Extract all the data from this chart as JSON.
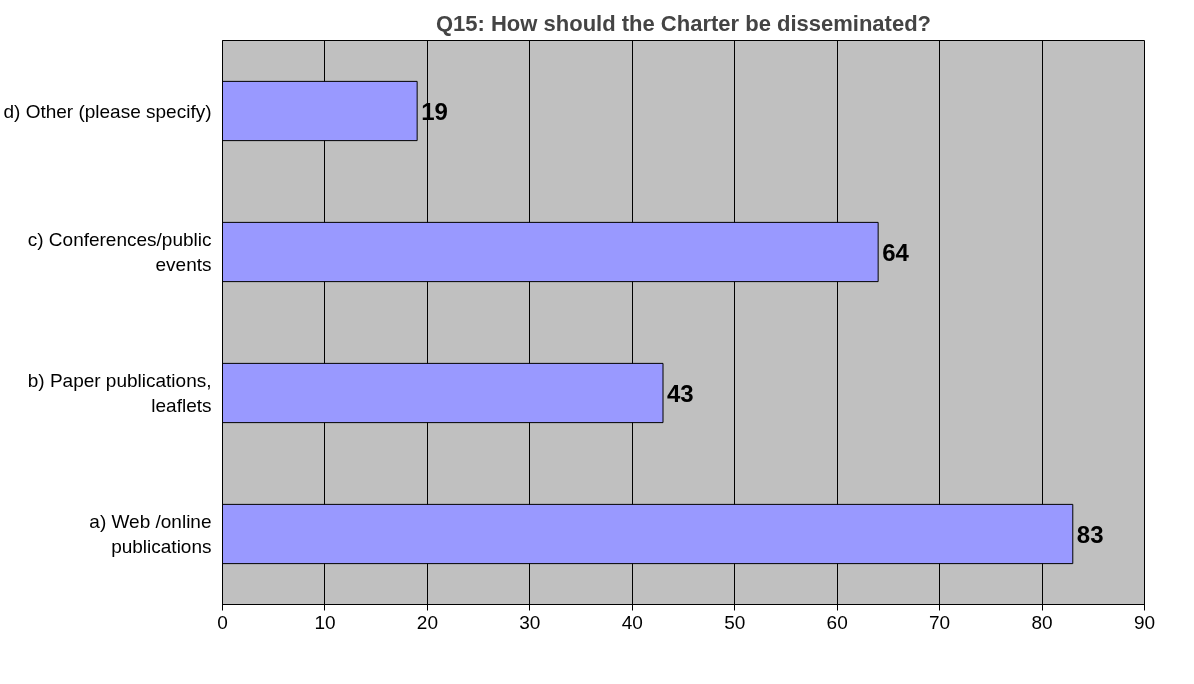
{
  "chart_data": {
    "type": "bar",
    "orientation": "horizontal",
    "title": "Q15: How should the Charter be disseminated?",
    "categories": [
      "d) Other (please specify)",
      "c) Conferences/public events",
      "b) Paper publications, leaflets",
      "a) Web /online publications"
    ],
    "values": [
      19,
      64,
      43,
      83
    ],
    "color": "#9999ff",
    "xlim": [
      0,
      90
    ],
    "xticks": [
      0,
      10,
      20,
      30,
      40,
      50,
      60,
      70,
      80,
      90
    ],
    "grid": "x",
    "data_labels": true
  }
}
